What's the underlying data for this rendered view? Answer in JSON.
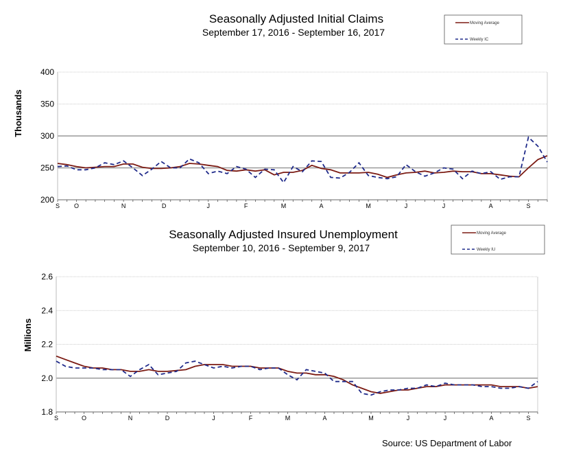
{
  "chart_data": [
    {
      "type": "line",
      "title": "Seasonally Adjusted Initial Claims",
      "subtitle": "September 17, 2016  - September 16, 2017",
      "ylabel": "Thousands",
      "ylim": [
        200,
        400
      ],
      "yticks": [
        "200",
        "250",
        "300",
        "350",
        "400"
      ],
      "ytick_values": [
        200,
        250,
        300,
        350,
        400
      ],
      "solid_gridlines": [
        250,
        300
      ],
      "dotted_gridlines": [
        350,
        400
      ],
      "x_ticks": [
        {
          "label": "S",
          "week": 0
        },
        {
          "label": "O",
          "week": 2
        },
        {
          "label": "N",
          "week": 7
        },
        {
          "label": "D",
          "week": 11.3
        },
        {
          "label": "J",
          "week": 16
        },
        {
          "label": "F",
          "week": 20
        },
        {
          "label": "M",
          "week": 24
        },
        {
          "label": "A",
          "week": 28
        },
        {
          "label": "M",
          "week": 33
        },
        {
          "label": "J",
          "week": 37
        },
        {
          "label": "J",
          "week": 41
        },
        {
          "label": "A",
          "week": 46
        },
        {
          "label": "S",
          "week": 50
        }
      ],
      "legend_position": "top-right",
      "series": [
        {
          "name": "Moving Average",
          "color": "#7b1a12",
          "style": "solid",
          "values": [
            257,
            255,
            252,
            250,
            251,
            252,
            252,
            256,
            256,
            251,
            249,
            249,
            250,
            252,
            257,
            256,
            254,
            252,
            246,
            245,
            247,
            245,
            247,
            239,
            243,
            243,
            246,
            254,
            249,
            247,
            242,
            242,
            242,
            243,
            240,
            235,
            239,
            242,
            243,
            245,
            242,
            243,
            245,
            244,
            244,
            241,
            241,
            239,
            237,
            236,
            250,
            263,
            269
          ]
        },
        {
          "name": "Weekly IC",
          "color": "#1f2a8a",
          "style": "dashed",
          "values": [
            252,
            253,
            247,
            247,
            250,
            258,
            255,
            261,
            250,
            238,
            248,
            260,
            250,
            250,
            264,
            258,
            241,
            245,
            241,
            252,
            248,
            235,
            248,
            247,
            227,
            252,
            244,
            261,
            260,
            235,
            234,
            243,
            258,
            238,
            235,
            233,
            236,
            255,
            244,
            237,
            242,
            250,
            248,
            233,
            245,
            241,
            244,
            232,
            236,
            236,
            298,
            284,
            259
          ]
        }
      ]
    },
    {
      "type": "line",
      "title": "Seasonally Adjusted Insured Unemployment",
      "subtitle": "September 10, 2016 -  September 9, 2017",
      "ylabel": "Millions",
      "ylim": [
        1.8,
        2.6
      ],
      "yticks": [
        "1.8",
        "2.0",
        "2.2",
        "2.4",
        "2.6"
      ],
      "ytick_values": [
        1.8,
        2.0,
        2.2,
        2.4,
        2.6
      ],
      "solid_gridlines": [
        2.0
      ],
      "dotted_gridlines": [
        2.2,
        2.4,
        2.6
      ],
      "x_ticks": [
        {
          "label": "S",
          "week": 0
        },
        {
          "label": "O",
          "week": 3
        },
        {
          "label": "N",
          "week": 8
        },
        {
          "label": "D",
          "week": 12
        },
        {
          "label": "J",
          "week": 17
        },
        {
          "label": "F",
          "week": 21
        },
        {
          "label": "M",
          "week": 25
        },
        {
          "label": "A",
          "week": 29
        },
        {
          "label": "M",
          "week": 34
        },
        {
          "label": "J",
          "week": 38
        },
        {
          "label": "J",
          "week": 42
        },
        {
          "label": "A",
          "week": 47
        },
        {
          "label": "S",
          "week": 51
        }
      ],
      "legend_position": "top-right",
      "series": [
        {
          "name": "Moving Average",
          "color": "#7b1a12",
          "style": "solid",
          "values": [
            2.13,
            2.11,
            2.09,
            2.07,
            2.06,
            2.06,
            2.05,
            2.05,
            2.04,
            2.04,
            2.05,
            2.04,
            2.04,
            2.045,
            2.05,
            2.07,
            2.08,
            2.08,
            2.08,
            2.07,
            2.07,
            2.07,
            2.06,
            2.06,
            2.06,
            2.04,
            2.03,
            2.03,
            2.02,
            2.02,
            2.01,
            1.99,
            1.96,
            1.94,
            1.92,
            1.91,
            1.92,
            1.93,
            1.93,
            1.94,
            1.95,
            1.95,
            1.96,
            1.96,
            1.96,
            1.96,
            1.96,
            1.96,
            1.95,
            1.95,
            1.95,
            1.94,
            1.95
          ]
        },
        {
          "name": "Weekly IU",
          "color": "#1f2a8a",
          "style": "dashed",
          "values": [
            2.1,
            2.07,
            2.06,
            2.06,
            2.06,
            2.05,
            2.05,
            2.05,
            2.01,
            2.05,
            2.08,
            2.02,
            2.03,
            2.04,
            2.09,
            2.1,
            2.08,
            2.06,
            2.07,
            2.06,
            2.07,
            2.07,
            2.05,
            2.06,
            2.06,
            2.02,
            1.99,
            2.05,
            2.04,
            2.03,
            1.98,
            1.98,
            1.98,
            1.91,
            1.9,
            1.92,
            1.93,
            1.93,
            1.94,
            1.94,
            1.96,
            1.95,
            1.97,
            1.96,
            1.96,
            1.96,
            1.95,
            1.95,
            1.94,
            1.94,
            1.95,
            1.94,
            1.98
          ]
        }
      ]
    }
  ],
  "source": "Source: US Department of Labor"
}
